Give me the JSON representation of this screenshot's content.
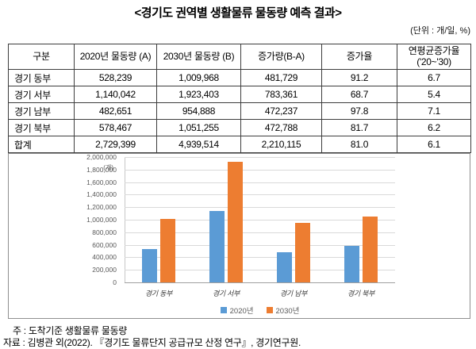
{
  "title": "<경기도 권역별 생활물류 물동량 예측 결과>",
  "unit_note": "(단위 : 개/일, %)",
  "table": {
    "headers": [
      "구분",
      "2020년 물동량 (A)",
      "2030년 물동량 (B)",
      "증가량(B-A)",
      "증가율",
      "연평균증가율\n('20~'30)"
    ],
    "rows": [
      {
        "region": "경기 동부",
        "v2020": "528,239",
        "v2030": "1,009,968",
        "increase": "481,729",
        "rate": "91.2",
        "cagr": "6.7"
      },
      {
        "region": "경기 서부",
        "v2020": "1,140,042",
        "v2030": "1,923,403",
        "increase": "783,361",
        "rate": "68.7",
        "cagr": "5.4"
      },
      {
        "region": "경기 남부",
        "v2020": "482,651",
        "v2030": "954,888",
        "increase": "472,237",
        "rate": "97.8",
        "cagr": "7.1"
      },
      {
        "region": "경기 북부",
        "v2020": "578,467",
        "v2030": "1,051,255",
        "increase": "472,788",
        "rate": "81.7",
        "cagr": "6.2"
      },
      {
        "region": "합계",
        "v2020": "2,729,399",
        "v2030": "4,939,514",
        "increase": "2,210,115",
        "rate": "81.0",
        "cagr": "6.1"
      }
    ]
  },
  "chart_data": {
    "type": "bar",
    "categories": [
      "경기 동부",
      "경기 서부",
      "경기 남부",
      "경기 북부"
    ],
    "series": [
      {
        "name": "2020년",
        "color": "#5B9BD5",
        "values": [
          528239,
          1140042,
          482651,
          578467
        ]
      },
      {
        "name": "2030년",
        "color": "#ED7D31",
        "values": [
          1009968,
          1923403,
          954888,
          1051255
        ]
      }
    ],
    "ylabel_unit": "(개)",
    "ylim": [
      0,
      2000000
    ],
    "ytick_step": 200000,
    "grid": true,
    "legend_position": "bottom"
  },
  "notes": {
    "note": "주 : 도착기준 생활물류 물동량",
    "source": "자료 : 김병관 외(2022). 『경기도 물류단지 공급규모 산정 연구』, 경기연구원."
  }
}
